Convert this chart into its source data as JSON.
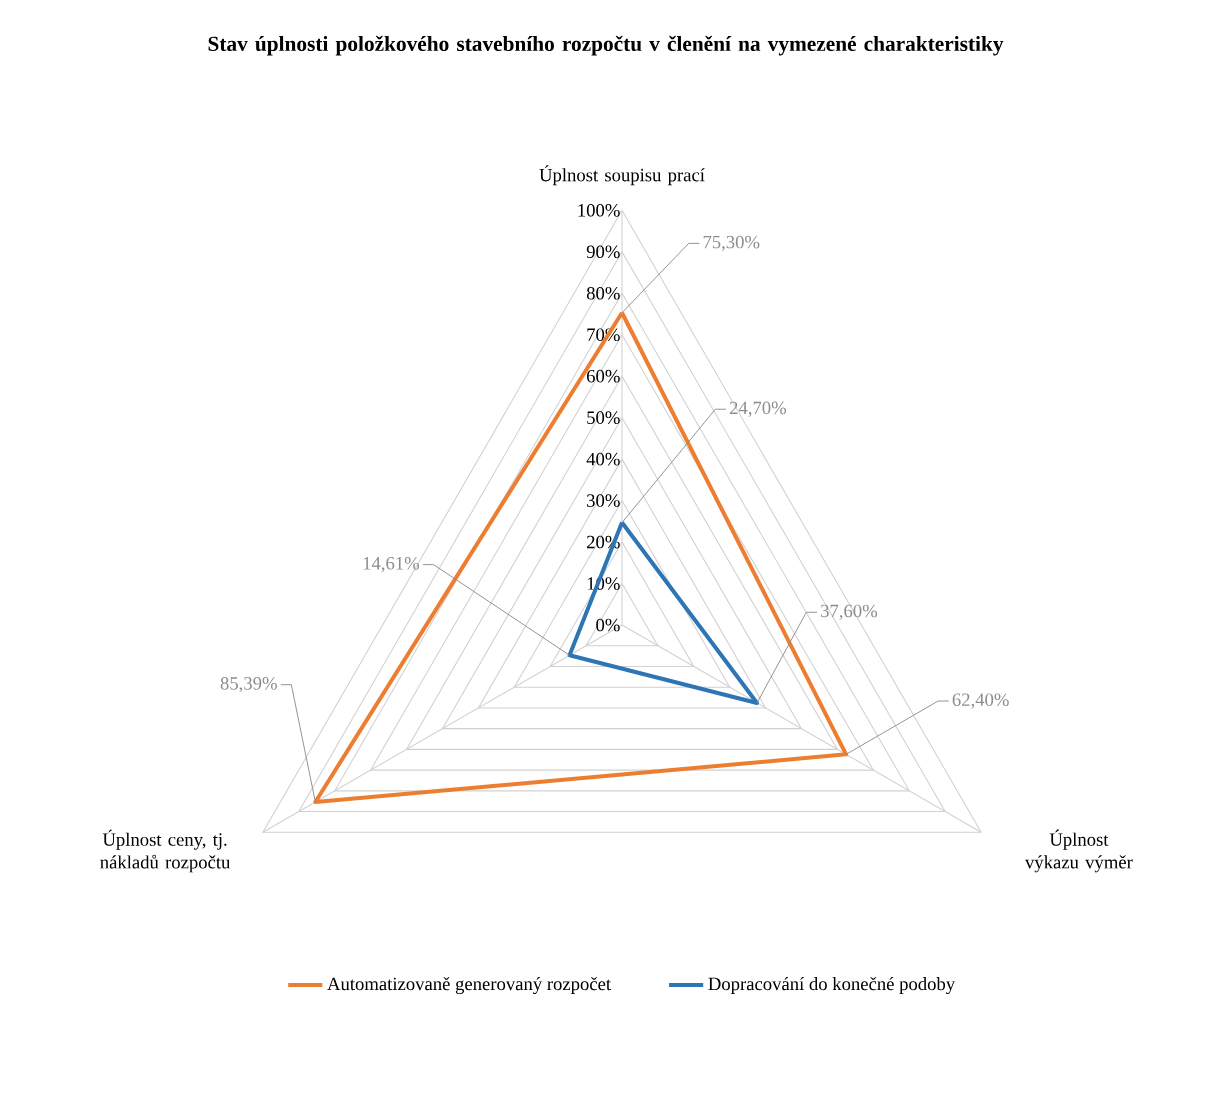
{
  "chart_data": {
    "type": "radar",
    "title": "Stav úplnosti položkového stavebního rozpočtu v členění na vymezené charakteristiky",
    "categories": [
      "Úplnost soupisu prací",
      "Úplnost výkazu výměr",
      "Úplnost ceny, tj. nákladů rozpočtu"
    ],
    "series": [
      {
        "name": "Automatizovaně generovaný rozpočet",
        "color": "#ed7d31",
        "values": [
          75.3,
          62.4,
          85.39
        ],
        "value_labels": [
          "75,30%",
          "62,40%",
          "85,39%"
        ]
      },
      {
        "name": "Dopracování do konečné podoby",
        "color": "#2e75b6",
        "values": [
          24.7,
          37.6,
          14.61
        ],
        "value_labels": [
          "24,70%",
          "37,60%",
          "14,61%"
        ]
      }
    ],
    "ylim": [
      0,
      100
    ],
    "yticks": [
      {
        "value": 0,
        "label": "0%"
      },
      {
        "value": 10,
        "label": "10%"
      },
      {
        "value": 20,
        "label": "20%"
      },
      {
        "value": 30,
        "label": "30%"
      },
      {
        "value": 40,
        "label": "40%"
      },
      {
        "value": 50,
        "label": "50%"
      },
      {
        "value": 60,
        "label": "60%"
      },
      {
        "value": 70,
        "label": "70%"
      },
      {
        "value": 80,
        "label": "80%"
      },
      {
        "value": 90,
        "label": "90%"
      },
      {
        "value": 100,
        "label": "100%"
      }
    ],
    "grid": true,
    "legend": "bottom"
  }
}
